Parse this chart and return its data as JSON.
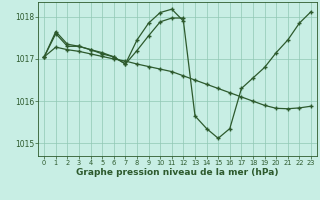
{
  "background_color": "#c8eee4",
  "grid_color": "#90c8b4",
  "line_color": "#2d5a2d",
  "xlabel": "Graphe pression niveau de la mer (hPa)",
  "xlabel_fontsize": 6.5,
  "xlim": [
    -0.5,
    23.5
  ],
  "ylim": [
    1014.7,
    1018.35
  ],
  "yticks": [
    1015,
    1016,
    1017,
    1018
  ],
  "xticks": [
    0,
    1,
    2,
    3,
    4,
    5,
    6,
    7,
    8,
    9,
    10,
    11,
    12,
    13,
    14,
    15,
    16,
    17,
    18,
    19,
    20,
    21,
    22,
    23
  ],
  "line1_x": [
    0,
    1,
    2,
    3,
    4,
    5,
    6,
    7,
    8,
    9,
    10,
    11,
    12
  ],
  "line1_y": [
    1017.05,
    1017.65,
    1017.35,
    1017.3,
    1017.22,
    1017.15,
    1017.05,
    1016.88,
    1017.2,
    1017.55,
    1017.88,
    1017.97,
    1017.97
  ],
  "line2_x": [
    0,
    1,
    2,
    3,
    4,
    5,
    6,
    7,
    8,
    9,
    10,
    11,
    12,
    13,
    14,
    15,
    16,
    17,
    18,
    19,
    20,
    21,
    22,
    23
  ],
  "line2_y": [
    1017.05,
    1017.6,
    1017.3,
    1017.3,
    1017.22,
    1017.12,
    1017.05,
    1016.88,
    1017.45,
    1017.85,
    1018.1,
    1018.18,
    1017.9,
    1015.65,
    1015.35,
    1015.12,
    1015.35,
    1016.3,
    1016.55,
    1016.8,
    1017.15,
    1017.45,
    1017.85,
    1018.12
  ],
  "line3_x": [
    0,
    1,
    2,
    3,
    4,
    5,
    6,
    7,
    8,
    9,
    10,
    11,
    12,
    13,
    14,
    15,
    16,
    17,
    18,
    19,
    20,
    21,
    22,
    23
  ],
  "line3_y": [
    1017.05,
    1017.28,
    1017.22,
    1017.18,
    1017.12,
    1017.06,
    1017.0,
    1016.95,
    1016.88,
    1016.82,
    1016.76,
    1016.7,
    1016.6,
    1016.5,
    1016.4,
    1016.3,
    1016.2,
    1016.1,
    1016.0,
    1015.9,
    1015.83,
    1015.82,
    1015.84,
    1015.88
  ]
}
